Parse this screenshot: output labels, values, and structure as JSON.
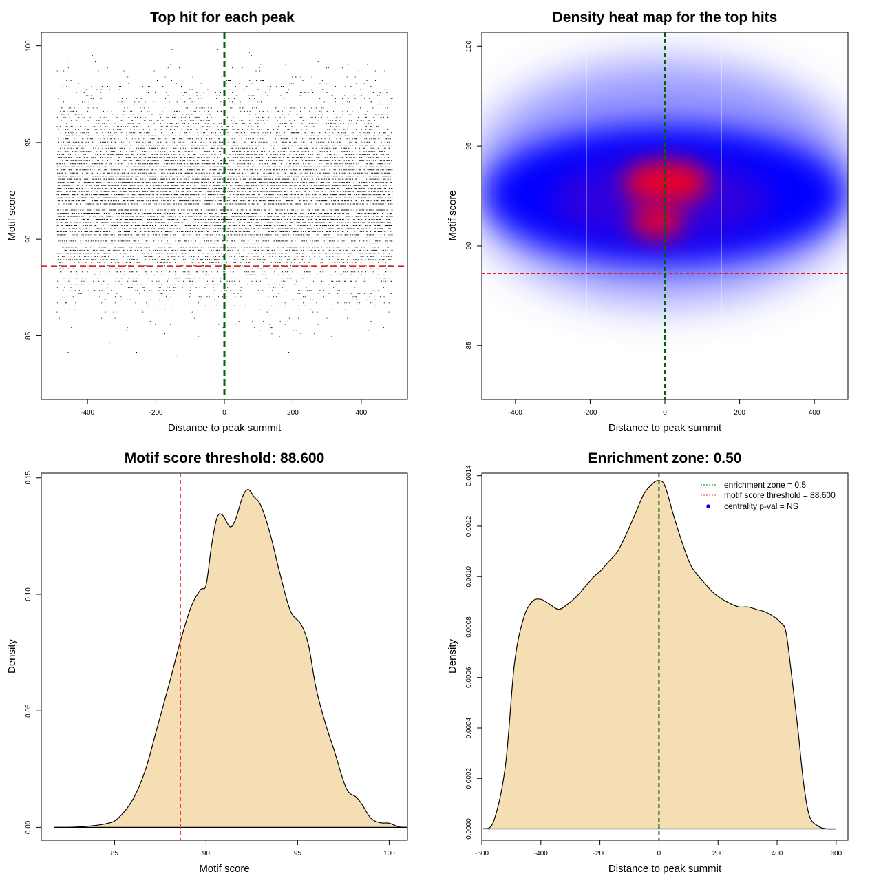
{
  "chart_data": [
    {
      "type": "scatter",
      "title": "Top hit for each peak",
      "xlabel": "Distance to peak summit",
      "ylabel": "Motif score",
      "xlim": [
        -535,
        535
      ],
      "ylim": [
        81.7,
        100.7
      ],
      "xticks": [
        -400,
        -200,
        0,
        200,
        400
      ],
      "yticks": [
        85,
        90,
        95,
        100
      ],
      "x_range_of_points": [
        -490,
        490
      ],
      "y_range_of_points": [
        82.3,
        100
      ],
      "approx_point_count": 12000,
      "vline": {
        "x": 0,
        "color": "#006400",
        "style": "dashed"
      },
      "hline": {
        "y": 88.6,
        "color": "#e02020",
        "style": "dashed"
      }
    },
    {
      "type": "heatmap",
      "title": "Density heat map for the top hits",
      "xlabel": "Distance to peak summit",
      "ylabel": "Motif score",
      "xlim": [
        -490,
        490
      ],
      "ylim": [
        82.3,
        100.7
      ],
      "xticks": [
        -400,
        -200,
        0,
        200,
        400
      ],
      "yticks": [
        85,
        90,
        95,
        100
      ],
      "colors": [
        "#ffffff",
        "#0000ff",
        "#e0002a"
      ],
      "density_peaks": [
        {
          "x": 0,
          "y": 92.7,
          "level": "high"
        },
        {
          "x": 0,
          "y": 91,
          "level": "high"
        }
      ],
      "vline": {
        "x": 0,
        "color": "#006400",
        "style": "dashed"
      },
      "hline": {
        "y": 88.6,
        "color": "#e02020",
        "style": "dashed"
      }
    },
    {
      "type": "area",
      "title": "Motif score threshold: 88.600",
      "xlabel": "Motif score",
      "ylabel": "Density",
      "xlim": [
        81,
        101
      ],
      "ylim": [
        -0.0055,
        0.152
      ],
      "xticks": [
        85,
        90,
        95,
        100
      ],
      "yticks": [
        0.0,
        0.05,
        0.1,
        0.15
      ],
      "ytick_labels": [
        "0.00",
        "0.05",
        "0.10",
        "0.15"
      ],
      "fill": "#f5deb3",
      "x": [
        81.7,
        83,
        84.5,
        85.2,
        86,
        86.7,
        87.3,
        88,
        88.6,
        89.2,
        89.7,
        90,
        90.3,
        90.6,
        90.9,
        91.3,
        91.6,
        92,
        92.3,
        92.6,
        93,
        93.5,
        94,
        94.6,
        95.2,
        95.6,
        96,
        96.5,
        97,
        97.5,
        97.8,
        98.2,
        98.5,
        99,
        99.5,
        100,
        100.5,
        101
      ],
      "y": [
        0.0,
        0.0002,
        0.0015,
        0.004,
        0.012,
        0.025,
        0.042,
        0.062,
        0.08,
        0.095,
        0.102,
        0.104,
        0.121,
        0.133,
        0.134,
        0.129,
        0.132,
        0.142,
        0.145,
        0.142,
        0.138,
        0.126,
        0.11,
        0.093,
        0.087,
        0.078,
        0.06,
        0.045,
        0.033,
        0.02,
        0.015,
        0.013,
        0.01,
        0.004,
        0.002,
        0.0018,
        0.0003,
        0.0
      ],
      "vline": {
        "x": 88.6,
        "color": "#e02020",
        "style": "dashed"
      }
    },
    {
      "type": "area",
      "title": "Enrichment zone: 0.50",
      "xlabel": "Distance to peak summit",
      "ylabel": "Density",
      "xlim": [
        -600,
        640
      ],
      "ylim": [
        -4.5e-05,
        0.00141
      ],
      "xticks": [
        -600,
        -400,
        -200,
        0,
        200,
        400,
        600
      ],
      "yticks": [
        0.0,
        0.0002,
        0.0004,
        0.0006,
        0.0008,
        0.001,
        0.0012,
        0.0014
      ],
      "ytick_labels": [
        "0.0000",
        "0.0002",
        "0.0004",
        "0.0006",
        "0.0008",
        "0.0010",
        "0.0012",
        "0.0014"
      ],
      "fill": "#f5deb3",
      "x": [
        -595,
        -560,
        -520,
        -490,
        -460,
        -430,
        -400,
        -370,
        -340,
        -310,
        -280,
        -250,
        -220,
        -200,
        -170,
        -140,
        -110,
        -80,
        -50,
        -20,
        0,
        20,
        50,
        80,
        110,
        150,
        190,
        230,
        270,
        300,
        330,
        360,
        390,
        410,
        430,
        450,
        470,
        490,
        510,
        540,
        570,
        600
      ],
      "y": [
        0.0,
        3e-05,
        0.00025,
        0.00065,
        0.00083,
        0.0009,
        0.00091,
        0.00089,
        0.00087,
        0.00089,
        0.00092,
        0.00096,
        0.001,
        0.00102,
        0.00106,
        0.0011,
        0.00117,
        0.00125,
        0.00133,
        0.00137,
        0.00138,
        0.00136,
        0.00124,
        0.00113,
        0.00104,
        0.00098,
        0.00093,
        0.0009,
        0.00088,
        0.00088,
        0.00087,
        0.00086,
        0.00084,
        0.00082,
        0.00078,
        0.0006,
        0.0004,
        0.00018,
        5e-05,
        1e-05,
        0.0,
        0.0
      ],
      "vline": {
        "x": 0,
        "color": "#006400",
        "style": "dashed"
      },
      "legend": {
        "position": "top-right",
        "entries": [
          {
            "label": "enrichment zone = 0.5",
            "color": "#008000",
            "kind": "dotted-line"
          },
          {
            "label": "motif score threshold = 88.600",
            "color": "#ff4040",
            "kind": "dotted-line"
          },
          {
            "label": "centrality p-val = NS",
            "color": "#0000ff",
            "kind": "point"
          }
        ]
      }
    }
  ]
}
